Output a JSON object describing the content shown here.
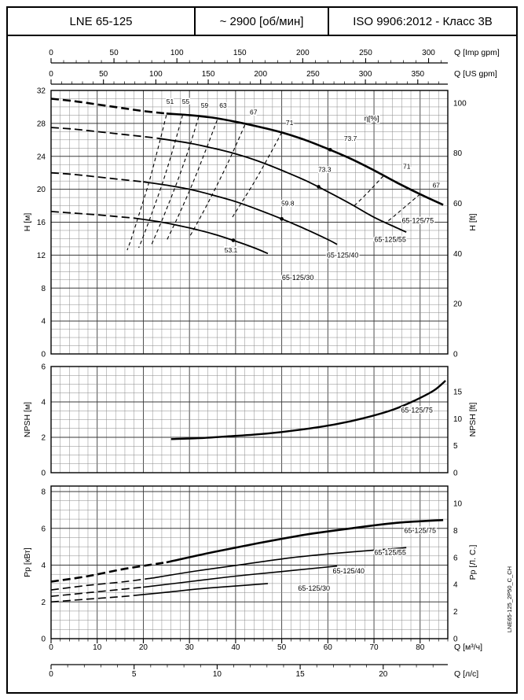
{
  "header": {
    "model": "LNE 65-125",
    "speed": "~ 2900 [об/мин]",
    "standard": "ISO 9906:2012 - Класс 3В"
  },
  "side_label": "LNE65-125_2P50_C_CH",
  "colors": {
    "curve": "#000000",
    "grid_minor": "#8a8a8a",
    "grid_major": "#3a3a3a",
    "frame": "#000000"
  },
  "q_axes": {
    "q_max_m3h": 86,
    "top": [
      {
        "label": "Q [Imp gpm]",
        "ticks": [
          0,
          50,
          100,
          150,
          200,
          250,
          300
        ],
        "minor": 10,
        "to_m3h": 0.27277
      },
      {
        "label": "Q [US gpm]",
        "ticks": [
          0,
          50,
          100,
          150,
          200,
          250,
          300,
          350
        ],
        "minor": 10,
        "to_m3h": 0.22712
      }
    ],
    "bottom": [
      {
        "label": "Q [м³/ч]",
        "ticks": [
          0,
          10,
          20,
          30,
          40,
          50,
          60,
          70,
          80
        ],
        "minor": 2,
        "to_m3h": 1
      },
      {
        "label": "Q [л/с]",
        "ticks": [
          0,
          5,
          10,
          15,
          20
        ],
        "minor": 1,
        "to_m3h": 3.6
      }
    ]
  },
  "chart_data": [
    {
      "id": "head",
      "type": "line",
      "title": "H-Q performance curves",
      "ylabel_left": "H [м]",
      "ylabel_right": "H [ft]",
      "ylim": [
        0,
        32
      ],
      "yticks_left": [
        0,
        4,
        8,
        12,
        16,
        20,
        24,
        28,
        32
      ],
      "yticks_right": [
        0,
        20,
        40,
        60,
        80,
        100
      ],
      "right_unit_to_left": 0.3048,
      "grid": {
        "x_minor": 2,
        "x_major": 10,
        "y_minor": 1,
        "y_major": 4
      },
      "series": [
        {
          "name": "head-curve-65-125-75-low-flow",
          "style": "dash",
          "width": 2.6,
          "points": [
            [
              0,
              31
            ],
            [
              5,
              30.7
            ],
            [
              10,
              30.3
            ],
            [
              15,
              29.9
            ],
            [
              20,
              29.5
            ],
            [
              25,
              29.2
            ]
          ]
        },
        {
          "name": "head-curve-65-125-75",
          "style": "solid",
          "width": 2.6,
          "points": [
            [
              25,
              29.2
            ],
            [
              30,
              29
            ],
            [
              35,
              28.7
            ],
            [
              40,
              28.2
            ],
            [
              45,
              27.6
            ],
            [
              50,
              26.9
            ],
            [
              55,
              26
            ],
            [
              60,
              24.9
            ],
            [
              65,
              23.7
            ],
            [
              70,
              22.3
            ],
            [
              75,
              20.8
            ],
            [
              80,
              19.4
            ],
            [
              85,
              18.1
            ]
          ]
        },
        {
          "name": "head-curve-65-125-55-low-flow",
          "style": "dash",
          "width": 1.8,
          "points": [
            [
              0,
              27.5
            ],
            [
              5,
              27.3
            ],
            [
              10,
              27
            ],
            [
              15,
              26.7
            ],
            [
              20,
              26.4
            ],
            [
              23,
              26.2
            ]
          ]
        },
        {
          "name": "head-curve-65-125-55",
          "style": "solid",
          "width": 1.8,
          "points": [
            [
              23,
              26.2
            ],
            [
              30,
              25.6
            ],
            [
              35,
              25
            ],
            [
              40,
              24.3
            ],
            [
              45,
              23.4
            ],
            [
              50,
              22.3
            ],
            [
              55,
              21.1
            ],
            [
              60,
              19.7
            ],
            [
              65,
              18.2
            ],
            [
              70,
              16.6
            ],
            [
              75,
              15.3
            ],
            [
              77,
              14.8
            ]
          ]
        },
        {
          "name": "head-curve-65-125-40-low-flow",
          "style": "dash",
          "width": 1.8,
          "points": [
            [
              0,
              22
            ],
            [
              5,
              21.8
            ],
            [
              10,
              21.5
            ],
            [
              15,
              21.2
            ],
            [
              20,
              20.9
            ]
          ]
        },
        {
          "name": "head-curve-65-125-40",
          "style": "solid",
          "width": 1.8,
          "points": [
            [
              20,
              20.9
            ],
            [
              25,
              20.5
            ],
            [
              30,
              20
            ],
            [
              35,
              19.3
            ],
            [
              40,
              18.5
            ],
            [
              45,
              17.5
            ],
            [
              50,
              16.4
            ],
            [
              55,
              15.2
            ],
            [
              60,
              13.9
            ],
            [
              62,
              13.3
            ]
          ]
        },
        {
          "name": "head-curve-65-125-30-low-flow",
          "style": "dash",
          "width": 1.8,
          "points": [
            [
              0,
              17.3
            ],
            [
              5,
              17.1
            ],
            [
              10,
              16.9
            ],
            [
              14,
              16.7
            ],
            [
              18,
              16.5
            ]
          ]
        },
        {
          "name": "head-curve-65-125-30",
          "style": "solid",
          "width": 1.8,
          "points": [
            [
              18,
              16.5
            ],
            [
              24,
              16
            ],
            [
              30,
              15.3
            ],
            [
              35,
              14.6
            ],
            [
              40,
              13.7
            ],
            [
              44,
              12.9
            ],
            [
              47,
              12.2
            ]
          ]
        },
        {
          "name": "efficiency-contour-51",
          "style": "eff",
          "width": 1.1,
          "points": [
            [
              25,
              29
            ],
            [
              23.2,
              25
            ],
            [
              21.3,
              21
            ],
            [
              19.1,
              17
            ],
            [
              17.4,
              14
            ],
            [
              16.5,
              12.6
            ]
          ]
        },
        {
          "name": "efficiency-contour-55",
          "style": "eff",
          "width": 1.1,
          "points": [
            [
              28.5,
              29
            ],
            [
              26.5,
              25
            ],
            [
              24.3,
              21
            ],
            [
              21.8,
              17
            ],
            [
              19.8,
              14
            ],
            [
              19,
              12.9
            ]
          ]
        },
        {
          "name": "efficiency-contour-59",
          "style": "eff",
          "width": 1.1,
          "points": [
            [
              32,
              28.8
            ],
            [
              29.9,
              25
            ],
            [
              27.4,
              21
            ],
            [
              24.6,
              17
            ],
            [
              22.8,
              14.6
            ],
            [
              21.8,
              13.3
            ]
          ]
        },
        {
          "name": "efficiency-contour-63",
          "style": "eff",
          "width": 1.1,
          "points": [
            [
              36,
              28.4
            ],
            [
              33.7,
              25
            ],
            [
              30.9,
              21
            ],
            [
              27.8,
              17
            ],
            [
              26.1,
              15
            ],
            [
              25,
              13.7
            ]
          ]
        },
        {
          "name": "efficiency-contour-67",
          "style": "eff",
          "width": 1.1,
          "points": [
            [
              42,
              27.8
            ],
            [
              39.8,
              25
            ],
            [
              37.3,
              22
            ],
            [
              33.7,
              18
            ],
            [
              31.3,
              15.5
            ],
            [
              30,
              14.2
            ]
          ]
        },
        {
          "name": "efficiency-contour-71-left",
          "style": "eff",
          "width": 1.1,
          "points": [
            [
              50,
              26.9
            ],
            [
              47.4,
              24.2
            ],
            [
              44.3,
              21.1
            ],
            [
              41.1,
              18.2
            ],
            [
              39.3,
              16.6
            ]
          ]
        },
        {
          "name": "efficiency-contour-71-right",
          "style": "eff",
          "width": 1.1,
          "points": [
            [
              72,
              21.6
            ],
            [
              69,
              19.8
            ],
            [
              66.5,
              18.4
            ],
            [
              65.7,
              18
            ]
          ]
        },
        {
          "name": "efficiency-contour-67-right",
          "style": "eff",
          "width": 1.1,
          "points": [
            [
              80,
              19.4
            ],
            [
              77,
              18
            ],
            [
              74.5,
              16.8
            ],
            [
              72.7,
              16
            ]
          ]
        }
      ],
      "labels": [
        {
          "text": "51",
          "q": 25.8,
          "v": 30.4
        },
        {
          "text": "55",
          "q": 29.2,
          "v": 30.4
        },
        {
          "text": "59",
          "q": 33.3,
          "v": 29.9
        },
        {
          "text": "63",
          "q": 37.3,
          "v": 29.9
        },
        {
          "text": "67",
          "q": 43.9,
          "v": 29.1
        },
        {
          "text": "71",
          "q": 51.7,
          "v": 27.8
        },
        {
          "text": "η[%]",
          "q": 69.5,
          "v": 28.3,
          "size": 9.5
        },
        {
          "text": "73.7",
          "q": 64.9,
          "v": 25.9
        },
        {
          "text": "73.3",
          "q": 59.3,
          "v": 22.1
        },
        {
          "text": "71",
          "q": 77.1,
          "v": 22.5
        },
        {
          "text": "67",
          "q": 83.5,
          "v": 20.2
        },
        {
          "text": "59.8",
          "q": 51.3,
          "v": 18.0
        },
        {
          "text": "53.1",
          "q": 39.0,
          "v": 12.3
        },
        {
          "text": "65-125/75",
          "q": 79.5,
          "v": 15.9,
          "size": 9
        },
        {
          "text": "65-125/55",
          "q": 73.5,
          "v": 13.6,
          "size": 9
        },
        {
          "text": "65-125/40",
          "q": 63.2,
          "v": 11.7,
          "size": 9
        },
        {
          "text": "65-125/30",
          "q": 53.5,
          "v": 9.0,
          "size": 9
        }
      ],
      "dots": [
        {
          "q": 60.5,
          "v": 24.8
        },
        {
          "q": 58.0,
          "v": 20.3
        },
        {
          "q": 50.0,
          "v": 16.4
        },
        {
          "q": 39.5,
          "v": 13.8
        }
      ]
    },
    {
      "id": "npsh",
      "type": "line",
      "title": "NPSH curve",
      "ylabel_left": "NPSH [м]",
      "ylabel_right": "NPSH [ft]",
      "ylim": [
        0,
        6
      ],
      "yticks_left": [
        0,
        2,
        4,
        6
      ],
      "yticks_right": [
        0,
        5,
        10,
        15
      ],
      "right_unit_to_left": 0.3048,
      "grid": {
        "x_minor": 2,
        "x_major": 10,
        "y_minor": 0.5,
        "y_major": 2
      },
      "series": [
        {
          "name": "npsh-curve-65-125-75",
          "style": "solid",
          "width": 2.4,
          "points": [
            [
              26,
              1.9
            ],
            [
              32,
              1.95
            ],
            [
              38,
              2.05
            ],
            [
              44,
              2.15
            ],
            [
              50,
              2.3
            ],
            [
              56,
              2.5
            ],
            [
              62,
              2.75
            ],
            [
              68,
              3.1
            ],
            [
              74,
              3.55
            ],
            [
              79,
              4.1
            ],
            [
              83,
              4.65
            ],
            [
              85.5,
              5.2
            ]
          ]
        }
      ],
      "labels": [
        {
          "text": "65-125/75",
          "q": 79.3,
          "v": 3.4,
          "size": 9
        }
      ],
      "dots": []
    },
    {
      "id": "power",
      "type": "line",
      "title": "Shaft power curves",
      "ylabel_left": "Pp [кВт]",
      "ylabel_right": "Pp [Л. С.]",
      "ylim": [
        0,
        8.3
      ],
      "yticks_left": [
        0,
        2,
        4,
        6,
        8
      ],
      "yticks_right": [
        0,
        2,
        4,
        6,
        8,
        10
      ],
      "right_unit_to_left": 0.7355,
      "grid": {
        "x_minor": 2,
        "x_major": 10,
        "y_minor": 0.5,
        "y_major": 2
      },
      "series": [
        {
          "name": "power-curve-65-125-75-low-flow",
          "style": "dash",
          "width": 2.6,
          "points": [
            [
              0,
              3.1
            ],
            [
              8,
              3.4
            ],
            [
              16,
              3.8
            ],
            [
              25,
              4.15
            ]
          ]
        },
        {
          "name": "power-curve-65-125-75",
          "style": "solid",
          "width": 2.6,
          "points": [
            [
              25,
              4.15
            ],
            [
              35,
              4.7
            ],
            [
              45,
              5.2
            ],
            [
              55,
              5.65
            ],
            [
              65,
              6
            ],
            [
              75,
              6.3
            ],
            [
              85,
              6.45
            ]
          ]
        },
        {
          "name": "power-curve-65-125-55-low-flow",
          "style": "dash",
          "width": 1.6,
          "points": [
            [
              0,
              2.65
            ],
            [
              8,
              2.9
            ],
            [
              16,
              3.1
            ],
            [
              22,
              3.3
            ]
          ]
        },
        {
          "name": "power-curve-65-125-55",
          "style": "solid",
          "width": 1.6,
          "points": [
            [
              22,
              3.3
            ],
            [
              32,
              3.7
            ],
            [
              42,
              4.05
            ],
            [
              52,
              4.4
            ],
            [
              62,
              4.65
            ],
            [
              72,
              4.85
            ],
            [
              77,
              4.95
            ]
          ]
        },
        {
          "name": "power-curve-65-125-40-low-flow",
          "style": "dash",
          "width": 1.6,
          "points": [
            [
              0,
              2.3
            ],
            [
              8,
              2.5
            ],
            [
              16,
              2.7
            ],
            [
              20,
              2.8
            ]
          ]
        },
        {
          "name": "power-curve-65-125-40",
          "style": "solid",
          "width": 1.6,
          "points": [
            [
              20,
              2.8
            ],
            [
              30,
              3.1
            ],
            [
              40,
              3.4
            ],
            [
              50,
              3.65
            ],
            [
              58,
              3.85
            ],
            [
              62,
              3.95
            ]
          ]
        },
        {
          "name": "power-curve-65-125-30-low-flow",
          "style": "dash",
          "width": 1.6,
          "points": [
            [
              0,
              2
            ],
            [
              8,
              2.15
            ],
            [
              16,
              2.3
            ],
            [
              18,
              2.35
            ]
          ]
        },
        {
          "name": "power-curve-65-125-30",
          "style": "solid",
          "width": 1.6,
          "points": [
            [
              18,
              2.35
            ],
            [
              26,
              2.55
            ],
            [
              34,
              2.75
            ],
            [
              42,
              2.9
            ],
            [
              47,
              3
            ]
          ]
        }
      ],
      "labels": [
        {
          "text": "65-125/75",
          "q": 80.0,
          "v": 5.75,
          "size": 9
        },
        {
          "text": "65-125/55",
          "q": 73.5,
          "v": 4.55,
          "size": 9
        },
        {
          "text": "65-125/40",
          "q": 64.5,
          "v": 3.55,
          "size": 9
        },
        {
          "text": "65-125/30",
          "q": 57.0,
          "v": 2.6,
          "size": 9
        }
      ],
      "dots": []
    }
  ]
}
